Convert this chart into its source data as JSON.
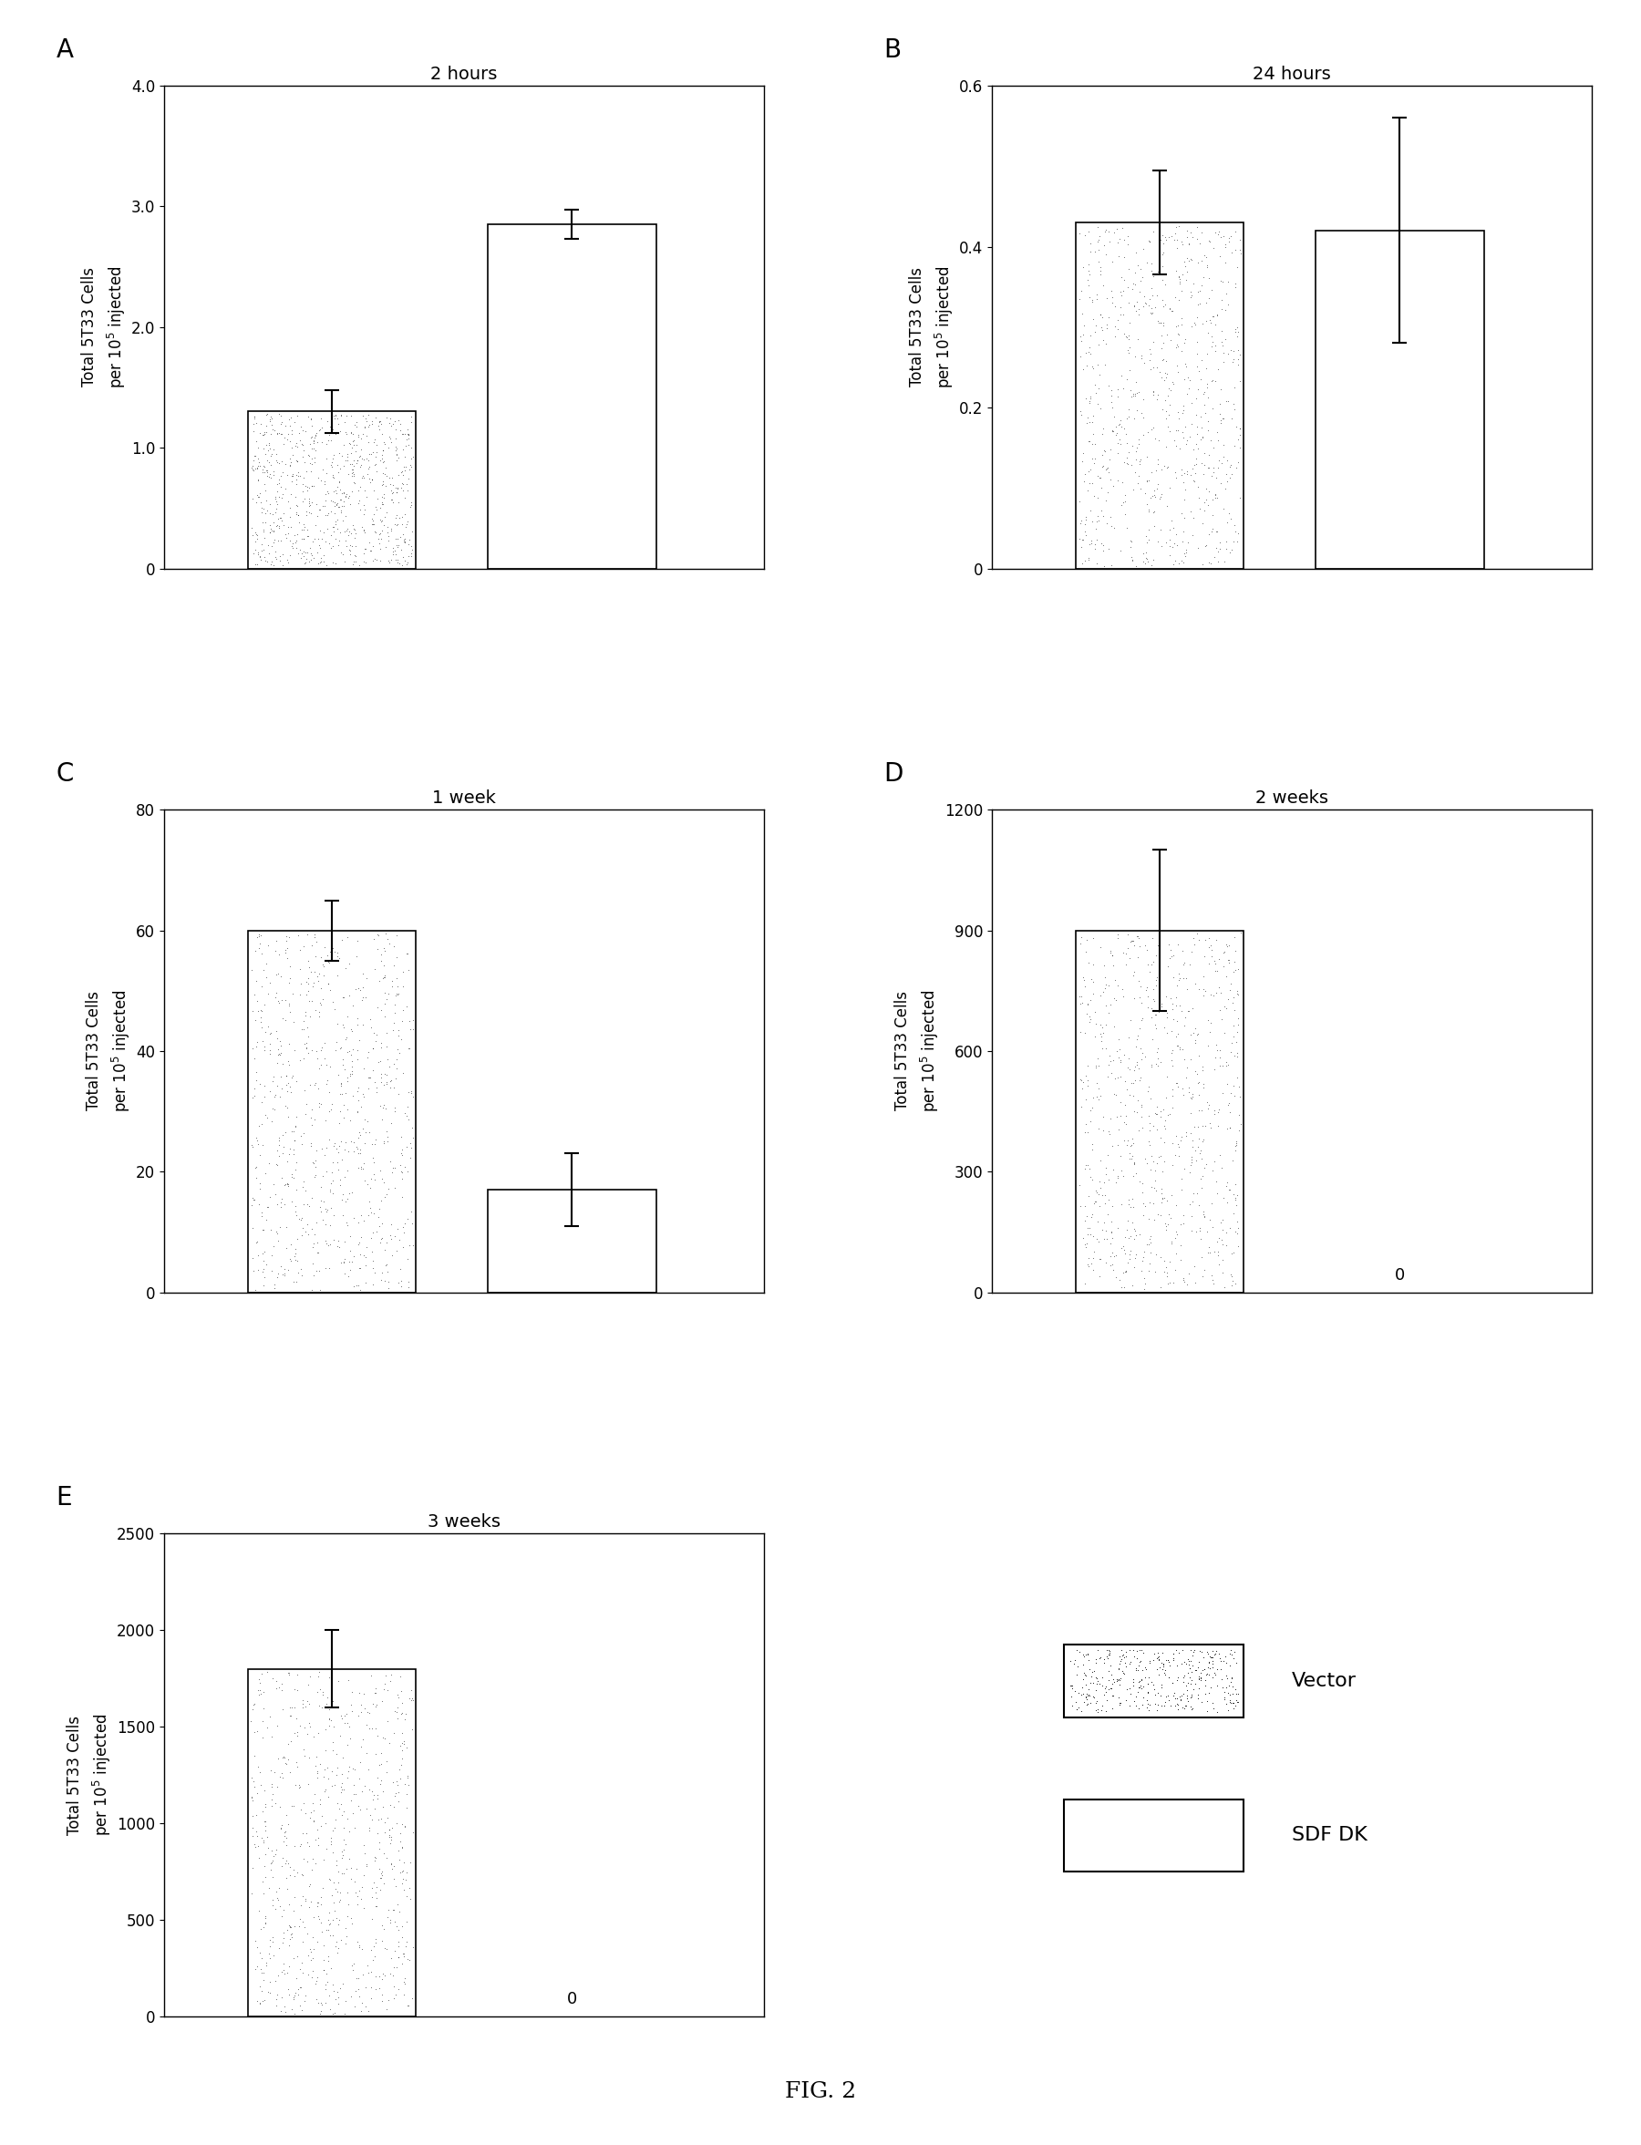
{
  "panels": [
    {
      "label": "A",
      "title": "2 hours",
      "values": [
        1.3,
        2.85
      ],
      "errors": [
        0.18,
        0.12
      ],
      "ylim": [
        0,
        4.0
      ],
      "yticks": [
        0,
        1.0,
        2.0,
        3.0,
        4.0
      ],
      "ytick_labels": [
        "0",
        "1.0",
        "2.0",
        "3.0",
        "4.0"
      ],
      "zero_labels": [],
      "ylabel": "Total 5T33 Cells\nper 10$^5$ injected"
    },
    {
      "label": "B",
      "title": "24 hours",
      "values": [
        0.43,
        0.42
      ],
      "errors": [
        0.065,
        0.14
      ],
      "ylim": [
        0,
        0.6
      ],
      "yticks": [
        0,
        0.2,
        0.4,
        0.6
      ],
      "ytick_labels": [
        "0",
        "0.2",
        "0.4",
        "0.6"
      ],
      "zero_labels": [],
      "ylabel": "Total 5T33 Cells\nper 10$^5$ injected"
    },
    {
      "label": "C",
      "title": "1 week",
      "values": [
        60,
        17
      ],
      "errors": [
        5,
        6
      ],
      "ylim": [
        0,
        80
      ],
      "yticks": [
        0,
        20,
        40,
        60,
        80
      ],
      "ytick_labels": [
        "0",
        "20",
        "40",
        "60",
        "80"
      ],
      "zero_labels": [],
      "ylabel": "Total 5T33 Cells\nper 10$^5$ injected"
    },
    {
      "label": "D",
      "title": "2 weeks",
      "values": [
        900,
        0
      ],
      "errors": [
        200,
        0
      ],
      "ylim": [
        0,
        1200
      ],
      "yticks": [
        0,
        300,
        600,
        900,
        1200
      ],
      "ytick_labels": [
        "0",
        "300",
        "600",
        "900",
        "1200"
      ],
      "zero_labels": [
        1
      ],
      "ylabel": "Total 5T33 Cells\nper 10$^5$ injected"
    },
    {
      "label": "E",
      "title": "3 weeks",
      "values": [
        1800,
        0
      ],
      "errors": [
        200,
        0
      ],
      "ylim": [
        0,
        2500
      ],
      "yticks": [
        0,
        500,
        1000,
        1500,
        2000,
        2500
      ],
      "ytick_labels": [
        "0",
        "500",
        "1000",
        "1500",
        "2000",
        "2500"
      ],
      "zero_labels": [
        1
      ],
      "ylabel": "Total 5T33 Cells\nper 10$^5$ injected"
    }
  ],
  "figure_label": "FIG. 2",
  "background_color": "white",
  "title_fontsize": 14,
  "panel_label_fontsize": 20,
  "tick_fontsize": 12,
  "ylabel_fontsize": 12,
  "legend_fontsize": 16
}
